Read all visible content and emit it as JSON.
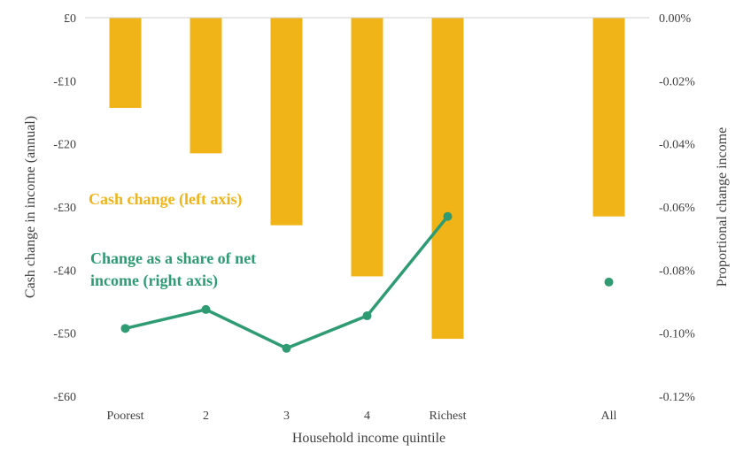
{
  "chart_data": {
    "type": "bar",
    "categories": [
      "Poorest",
      "2",
      "3",
      "4",
      "Richest",
      "",
      "All"
    ],
    "xlabel": "Household income quintile",
    "ylabel_left": "Cash change in income (annual)",
    "ylabel_right": "Proportional change income",
    "ylim_left": [
      -60,
      0
    ],
    "ylim_right": [
      -0.12,
      0.0
    ],
    "left_ticks": [
      "£0",
      "-£10",
      "-£20",
      "-£30",
      "-£40",
      "-£50",
      "-£60"
    ],
    "right_ticks": [
      "0.00%",
      "-0.02%",
      "-0.04%",
      "-0.06%",
      "-0.08%",
      "-0.10%",
      "-0.12%"
    ],
    "grid": false,
    "series": [
      {
        "type": "bar",
        "axis": "left",
        "color": "#F0B418",
        "values": [
          -14.3,
          -21.5,
          -32.9,
          -41.0,
          -50.9,
          null,
          -31.5
        ]
      },
      {
        "type": "line",
        "axis": "right",
        "color": "#2E9B73",
        "values": [
          -0.0985,
          -0.0925,
          -0.1048,
          -0.0945,
          -0.063,
          null,
          -0.0838
        ],
        "connect": [
          0,
          1,
          2,
          3,
          4
        ]
      }
    ],
    "annotations": [
      {
        "lines": [
          "Cash change (left axis)"
        ],
        "color": "#F0B418"
      },
      {
        "lines": [
          "Change as a share of net",
          "income (right axis)"
        ],
        "color": "#2E9B73"
      }
    ]
  }
}
